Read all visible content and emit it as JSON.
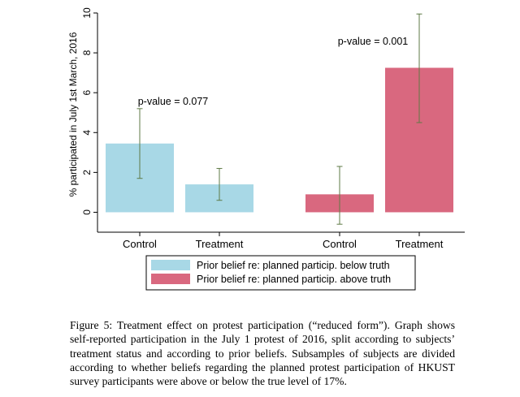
{
  "chart_data": {
    "type": "bar",
    "ylabel": "% participated in July 1st March, 2016",
    "ylim": [
      -1,
      10
    ],
    "yticks": [
      0,
      2,
      4,
      6,
      8,
      10
    ],
    "grid": false,
    "legend_position": "bottom",
    "groups": [
      {
        "annotation": "p-value = 0.077",
        "bars": [
          {
            "category": "Control",
            "series": "Prior belief re: planned particip. below truth",
            "value": 3.45,
            "ci": [
              1.7,
              5.2
            ]
          },
          {
            "category": "Treatment",
            "series": "Prior belief re: planned particip. below truth",
            "value": 1.4,
            "ci": [
              0.6,
              2.2
            ]
          }
        ]
      },
      {
        "annotation": "p-value = 0.001",
        "bars": [
          {
            "category": "Control",
            "series": "Prior belief re: planned particip. above truth",
            "value": 0.9,
            "ci": [
              -0.6,
              2.3
            ]
          },
          {
            "category": "Treatment",
            "series": "Prior belief re: planned particip. above truth",
            "value": 7.25,
            "ci": [
              4.5,
              9.95
            ]
          }
        ]
      }
    ],
    "series": [
      {
        "name": "Prior belief re: planned particip. below truth",
        "color": "#a8d8e6"
      },
      {
        "name": "Prior belief re: planned particip. above truth",
        "color": "#d9687f"
      }
    ],
    "errorbar_color": "#5e7a45"
  },
  "caption": "Figure 5: Treatment effect on protest participation (“reduced form”). Graph shows self-reported participation in the July 1 protest of 2016, split according to subjects’ treatment status and according to prior beliefs. Subsamples of subjects are divided according to whether beliefs regarding the planned protest participation of HKUST survey participants were above or below the true level of 17%."
}
